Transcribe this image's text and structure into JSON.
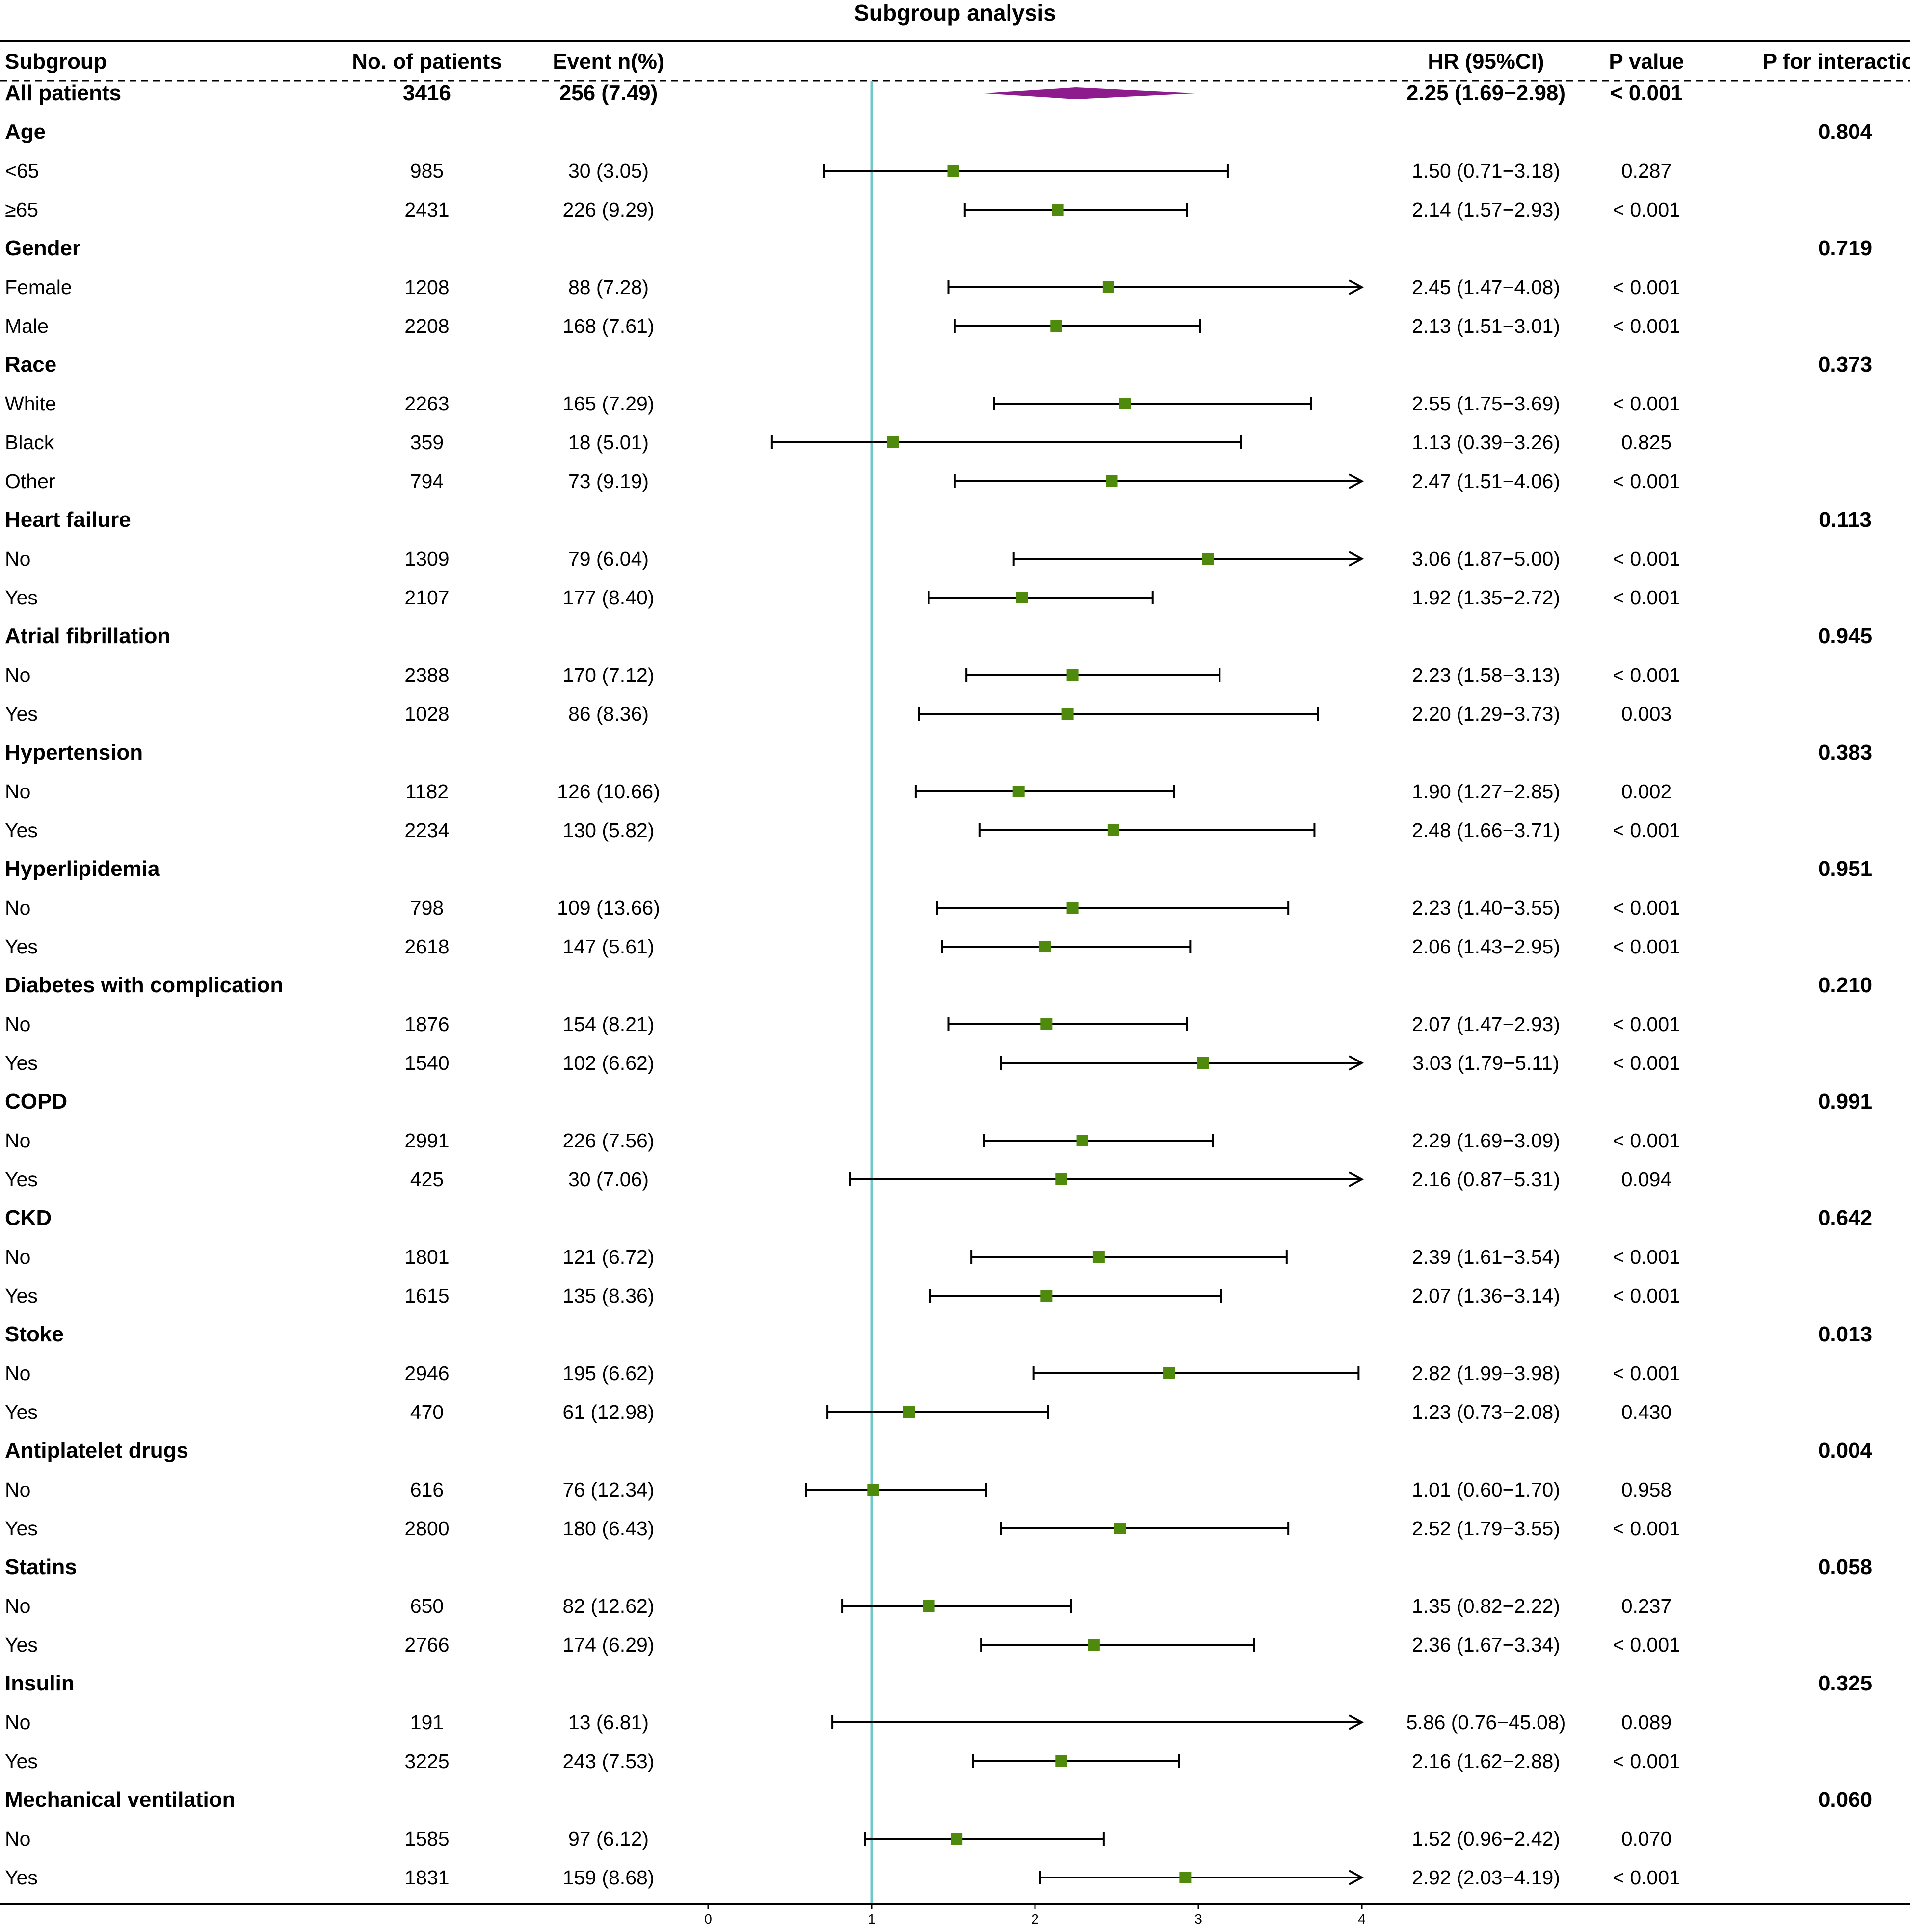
{
  "chart_data": {
    "type": "forest",
    "title": "Subgroup analysis",
    "columns": {
      "subgroup": "Subgroup",
      "n": "No. of patients",
      "event": "Event n(%)",
      "hr": "HR (95%CI)",
      "p": "P value",
      "pint": "P for interaction"
    },
    "xaxis": {
      "min": 0,
      "max": 4,
      "ticks": [
        "0",
        "1",
        "2",
        "3",
        "4"
      ],
      "reference": 1
    },
    "colors": {
      "marker": "#4e8a0b",
      "overall": "#8e1b8e",
      "reference": "#6fc9c9",
      "line": "#000000"
    },
    "rows": [
      {
        "kind": "overall",
        "label": "All patients",
        "n": "3416",
        "event": "256 (7.49)",
        "hr_text": "2.25 (1.69−2.98)",
        "p": "< 0.001",
        "hr": 2.25,
        "lo": 1.69,
        "hi": 2.98
      },
      {
        "kind": "group",
        "label": "Age",
        "pint": "0.804"
      },
      {
        "kind": "sub",
        "label": "<65",
        "n": "985",
        "event": "30 (3.05)",
        "hr_text": "1.50 (0.71−3.18)",
        "p": "0.287",
        "hr": 1.5,
        "lo": 0.71,
        "hi": 3.18
      },
      {
        "kind": "sub",
        "label": "≥65",
        "n": "2431",
        "event": "226 (9.29)",
        "hr_text": "2.14 (1.57−2.93)",
        "p": "< 0.001",
        "hr": 2.14,
        "lo": 1.57,
        "hi": 2.93
      },
      {
        "kind": "group",
        "label": "Gender",
        "pint": "0.719"
      },
      {
        "kind": "sub",
        "label": "Female",
        "n": "1208",
        "event": "88 (7.28)",
        "hr_text": "2.45 (1.47−4.08)",
        "p": "< 0.001",
        "hr": 2.45,
        "lo": 1.47,
        "hi": 4.08
      },
      {
        "kind": "sub",
        "label": "Male",
        "n": "2208",
        "event": "168 (7.61)",
        "hr_text": "2.13 (1.51−3.01)",
        "p": "< 0.001",
        "hr": 2.13,
        "lo": 1.51,
        "hi": 3.01
      },
      {
        "kind": "group",
        "label": "Race",
        "pint": "0.373"
      },
      {
        "kind": "sub",
        "label": "White",
        "n": "2263",
        "event": "165 (7.29)",
        "hr_text": "2.55 (1.75−3.69)",
        "p": "< 0.001",
        "hr": 2.55,
        "lo": 1.75,
        "hi": 3.69
      },
      {
        "kind": "sub",
        "label": "Black",
        "n": "359",
        "event": "18 (5.01)",
        "hr_text": "1.13 (0.39−3.26)",
        "p": "0.825",
        "hr": 1.13,
        "lo": 0.39,
        "hi": 3.26
      },
      {
        "kind": "sub",
        "label": "Other",
        "n": "794",
        "event": "73 (9.19)",
        "hr_text": "2.47 (1.51−4.06)",
        "p": "< 0.001",
        "hr": 2.47,
        "lo": 1.51,
        "hi": 4.06
      },
      {
        "kind": "group",
        "label": "Heart failure",
        "pint": "0.113"
      },
      {
        "kind": "sub",
        "label": "No",
        "n": "1309",
        "event": "79 (6.04)",
        "hr_text": "3.06 (1.87−5.00)",
        "p": "< 0.001",
        "hr": 3.06,
        "lo": 1.87,
        "hi": 5.0
      },
      {
        "kind": "sub",
        "label": "Yes",
        "n": "2107",
        "event": "177 (8.40)",
        "hr_text": "1.92 (1.35−2.72)",
        "p": "< 0.001",
        "hr": 1.92,
        "lo": 1.35,
        "hi": 2.72
      },
      {
        "kind": "group",
        "label": "Atrial fibrillation",
        "pint": "0.945"
      },
      {
        "kind": "sub",
        "label": "No",
        "n": "2388",
        "event": "170 (7.12)",
        "hr_text": "2.23 (1.58−3.13)",
        "p": "< 0.001",
        "hr": 2.23,
        "lo": 1.58,
        "hi": 3.13
      },
      {
        "kind": "sub",
        "label": "Yes",
        "n": "1028",
        "event": "86 (8.36)",
        "hr_text": "2.20 (1.29−3.73)",
        "p": "0.003",
        "hr": 2.2,
        "lo": 1.29,
        "hi": 3.73
      },
      {
        "kind": "group",
        "label": "Hypertension",
        "pint": "0.383"
      },
      {
        "kind": "sub",
        "label": "No",
        "n": "1182",
        "event": "126 (10.66)",
        "hr_text": "1.90 (1.27−2.85)",
        "p": "0.002",
        "hr": 1.9,
        "lo": 1.27,
        "hi": 2.85
      },
      {
        "kind": "sub",
        "label": "Yes",
        "n": "2234",
        "event": "130 (5.82)",
        "hr_text": "2.48 (1.66−3.71)",
        "p": "< 0.001",
        "hr": 2.48,
        "lo": 1.66,
        "hi": 3.71
      },
      {
        "kind": "group",
        "label": "Hyperlipidemia",
        "pint": "0.951"
      },
      {
        "kind": "sub",
        "label": "No",
        "n": "798",
        "event": "109 (13.66)",
        "hr_text": "2.23 (1.40−3.55)",
        "p": "< 0.001",
        "hr": 2.23,
        "lo": 1.4,
        "hi": 3.55
      },
      {
        "kind": "sub",
        "label": "Yes",
        "n": "2618",
        "event": "147 (5.61)",
        "hr_text": "2.06 (1.43−2.95)",
        "p": "< 0.001",
        "hr": 2.06,
        "lo": 1.43,
        "hi": 2.95
      },
      {
        "kind": "group",
        "label": "Diabetes with complication",
        "pint": "0.210"
      },
      {
        "kind": "sub",
        "label": "No",
        "n": "1876",
        "event": "154 (8.21)",
        "hr_text": "2.07 (1.47−2.93)",
        "p": "< 0.001",
        "hr": 2.07,
        "lo": 1.47,
        "hi": 2.93
      },
      {
        "kind": "sub",
        "label": "Yes",
        "n": "1540",
        "event": "102 (6.62)",
        "hr_text": "3.03 (1.79−5.11)",
        "p": "< 0.001",
        "hr": 3.03,
        "lo": 1.79,
        "hi": 5.11
      },
      {
        "kind": "group",
        "label": "COPD",
        "pint": "0.991"
      },
      {
        "kind": "sub",
        "label": "No",
        "n": "2991",
        "event": "226 (7.56)",
        "hr_text": "2.29 (1.69−3.09)",
        "p": "< 0.001",
        "hr": 2.29,
        "lo": 1.69,
        "hi": 3.09
      },
      {
        "kind": "sub",
        "label": "Yes",
        "n": "425",
        "event": "30 (7.06)",
        "hr_text": "2.16 (0.87−5.31)",
        "p": "0.094",
        "hr": 2.16,
        "lo": 0.87,
        "hi": 5.31
      },
      {
        "kind": "group",
        "label": "CKD",
        "pint": "0.642"
      },
      {
        "kind": "sub",
        "label": "No",
        "n": "1801",
        "event": "121 (6.72)",
        "hr_text": "2.39 (1.61−3.54)",
        "p": "< 0.001",
        "hr": 2.39,
        "lo": 1.61,
        "hi": 3.54
      },
      {
        "kind": "sub",
        "label": "Yes",
        "n": "1615",
        "event": "135 (8.36)",
        "hr_text": "2.07 (1.36−3.14)",
        "p": "< 0.001",
        "hr": 2.07,
        "lo": 1.36,
        "hi": 3.14
      },
      {
        "kind": "group",
        "label": "Stoke",
        "pint": "0.013"
      },
      {
        "kind": "sub",
        "label": "No",
        "n": "2946",
        "event": "195 (6.62)",
        "hr_text": "2.82 (1.99−3.98)",
        "p": "< 0.001",
        "hr": 2.82,
        "lo": 1.99,
        "hi": 3.98
      },
      {
        "kind": "sub",
        "label": "Yes",
        "n": "470",
        "event": "61 (12.98)",
        "hr_text": "1.23 (0.73−2.08)",
        "p": "0.430",
        "hr": 1.23,
        "lo": 0.73,
        "hi": 2.08
      },
      {
        "kind": "group",
        "label": "Antiplatelet drugs",
        "pint": "0.004"
      },
      {
        "kind": "sub",
        "label": "No",
        "n": "616",
        "event": "76 (12.34)",
        "hr_text": "1.01 (0.60−1.70)",
        "p": "0.958",
        "hr": 1.01,
        "lo": 0.6,
        "hi": 1.7
      },
      {
        "kind": "sub",
        "label": "Yes",
        "n": "2800",
        "event": "180 (6.43)",
        "hr_text": "2.52 (1.79−3.55)",
        "p": "< 0.001",
        "hr": 2.52,
        "lo": 1.79,
        "hi": 3.55
      },
      {
        "kind": "group",
        "label": "Statins",
        "pint": "0.058"
      },
      {
        "kind": "sub",
        "label": "No",
        "n": "650",
        "event": "82 (12.62)",
        "hr_text": "1.35 (0.82−2.22)",
        "p": "0.237",
        "hr": 1.35,
        "lo": 0.82,
        "hi": 2.22
      },
      {
        "kind": "sub",
        "label": "Yes",
        "n": "2766",
        "event": "174 (6.29)",
        "hr_text": "2.36 (1.67−3.34)",
        "p": "< 0.001",
        "hr": 2.36,
        "lo": 1.67,
        "hi": 3.34
      },
      {
        "kind": "group",
        "label": "Insulin",
        "pint": "0.325"
      },
      {
        "kind": "sub",
        "label": "No",
        "n": "191",
        "event": "13 (6.81)",
        "hr_text": "5.86 (0.76−45.08)",
        "p": "0.089",
        "hr": 5.86,
        "lo": 0.76,
        "hi": 45.08
      },
      {
        "kind": "sub",
        "label": "Yes",
        "n": "3225",
        "event": "243 (7.53)",
        "hr_text": "2.16 (1.62−2.88)",
        "p": "< 0.001",
        "hr": 2.16,
        "lo": 1.62,
        "hi": 2.88
      },
      {
        "kind": "group",
        "label": "Mechanical ventilation",
        "pint": "0.060"
      },
      {
        "kind": "sub",
        "label": "No",
        "n": "1585",
        "event": "97 (6.12)",
        "hr_text": "1.52 (0.96−2.42)",
        "p": "0.070",
        "hr": 1.52,
        "lo": 0.96,
        "hi": 2.42
      },
      {
        "kind": "sub",
        "label": "Yes",
        "n": "1831",
        "event": "159 (8.68)",
        "hr_text": "2.92 (2.03−4.19)",
        "p": "< 0.001",
        "hr": 2.92,
        "lo": 2.03,
        "hi": 4.19
      }
    ]
  }
}
